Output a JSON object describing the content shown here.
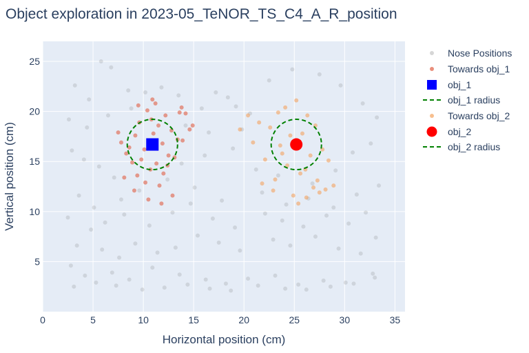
{
  "title": "Object exploration in 2023-05_TeNOR_TS_C4_A_R_position",
  "chart_data": {
    "type": "scatter",
    "title": "Object exploration in 2023-05_TeNOR_TS_C4_A_R_position",
    "xlabel": "Horizontal position (cm)",
    "ylabel": "Vertical position (cm)",
    "xlim": [
      0,
      36
    ],
    "ylim": [
      0,
      27
    ],
    "xticks": [
      0,
      5,
      10,
      15,
      20,
      25,
      30,
      35
    ],
    "yticks": [
      5,
      10,
      15,
      20,
      25
    ],
    "grid": true,
    "legend_position": "right",
    "colors": {
      "background": "#e5ecf6",
      "grid": "#ffffff",
      "nose": "#808080",
      "towards_obj_1": "#e05f45",
      "towards_obj_2": "#f4a460",
      "obj_1": "#0000ff",
      "obj_2": "#ff0000",
      "radius": "#008000"
    },
    "series": [
      {
        "name": "Nose Positions",
        "marker": "circle",
        "color": "#808080",
        "opacity": 0.22,
        "x": [
          5.8,
          6.8,
          3.2,
          4.6,
          8.5,
          10.2,
          11.8,
          13.5,
          15.8,
          17.2,
          18.4,
          19.2,
          20.6,
          2.6,
          4.4,
          6.5,
          8.8,
          14.2,
          16.5,
          19.8,
          22.5,
          24.8,
          27.5,
          29.6,
          31.8,
          33.2,
          2.9,
          4.1,
          5.6,
          7.1,
          13.8,
          16.1,
          18.9,
          21.2,
          23.4,
          26.8,
          29.1,
          30.8,
          32.6,
          3.6,
          5.1,
          7.8,
          9.6,
          12.4,
          15.1,
          17.8,
          21.8,
          24.2,
          26.4,
          28.9,
          31.2,
          33.4,
          2.5,
          4.8,
          6.2,
          8.1,
          10.6,
          12.9,
          14.7,
          16.9,
          19.1,
          22.1,
          23.8,
          25.9,
          28.2,
          30.4,
          32.1,
          33.1,
          3.4,
          5.9,
          7.6,
          9.2,
          11.4,
          13.2,
          15.4,
          17.5,
          19.6,
          22.9,
          24.6,
          27.1,
          29.4,
          31.6,
          2.8,
          4.2,
          6.9,
          8.6,
          10.9,
          13.6,
          16.2,
          18.2,
          20.4,
          23.1,
          25.4,
          27.9,
          30.1,
          32.8,
          3.1,
          5.3,
          7.3,
          9.9,
          12.1,
          14.4,
          16.6,
          18.7,
          21.4,
          24.1,
          26.2,
          28.6,
          30.9,
          33.0
        ],
        "y": [
          25.0,
          24.4,
          22.6,
          21.2,
          22.1,
          21.9,
          22.4,
          21.6,
          20.3,
          21.9,
          21.4,
          20.5,
          19.8,
          19.2,
          18.4,
          19.6,
          20.3,
          18.6,
          17.9,
          18.2,
          23.1,
          24.2,
          23.7,
          22.6,
          20.8,
          19.4,
          16.1,
          15.2,
          14.5,
          13.4,
          14.8,
          15.6,
          16.3,
          14.2,
          13.6,
          12.8,
          14.1,
          15.9,
          16.8,
          11.6,
          10.4,
          11.2,
          12.1,
          13.2,
          12.4,
          11.1,
          11.9,
          10.7,
          11.3,
          10.4,
          11.7,
          12.6,
          9.4,
          8.2,
          8.9,
          9.7,
          8.6,
          9.9,
          10.8,
          9.3,
          8.4,
          9.8,
          9.1,
          8.5,
          9.6,
          8.8,
          9.9,
          7.4,
          6.6,
          6.2,
          5.4,
          6.8,
          5.9,
          6.4,
          7.6,
          6.9,
          6.1,
          7.2,
          6.6,
          7.5,
          6.3,
          5.8,
          4.6,
          3.6,
          3.9,
          3.2,
          4.4,
          3.7,
          3.2,
          2.8,
          3.3,
          3.6,
          2.7,
          3.1,
          2.9,
          3.8,
          2.5,
          2.9,
          2.6,
          2.2,
          2.4,
          2.7,
          2.3,
          2.1,
          2.6,
          2.3,
          2.2,
          2.5,
          2.8,
          3.4
        ]
      },
      {
        "name": "Towards obj_1",
        "marker": "circle",
        "color": "#e05f45",
        "opacity": 0.6,
        "x": [
          10.8,
          10.4,
          11.5,
          9.6,
          12.2,
          11.0,
          9.2,
          12.8,
          10.1,
          11.9,
          8.6,
          13.4,
          9.8,
          12.5,
          11.3,
          10.7,
          8.9,
          13.1,
          9.4,
          12.0,
          11.6,
          10.2,
          14.2,
          13.8,
          14.6,
          7.8,
          8.3,
          9.1,
          10.5,
          11.8,
          12.9,
          13.6,
          9.5,
          10.9,
          11.2,
          12.4,
          8.1,
          7.5,
          13.9,
          14.9
        ],
        "y": [
          19.2,
          20.1,
          18.6,
          18.9,
          19.6,
          17.8,
          17.6,
          18.1,
          16.2,
          16.8,
          16.4,
          17.2,
          15.2,
          15.6,
          14.8,
          14.2,
          14.9,
          15.4,
          13.6,
          13.8,
          12.6,
          12.9,
          19.8,
          20.4,
          18.2,
          16.9,
          15.8,
          12.1,
          11.2,
          10.8,
          11.6,
          19.9,
          20.6,
          21.2,
          20.8,
          14.6,
          13.4,
          17.9,
          17.1,
          18.6
        ]
      },
      {
        "name": "obj_1",
        "marker": "square",
        "color": "#0000ff",
        "opacity": 1,
        "x": [
          10.9
        ],
        "y": [
          16.7
        ]
      },
      {
        "name": "obj_1 radius",
        "marker": "dashed-circle",
        "color": "#008000",
        "opacity": 1,
        "x": [
          10.9
        ],
        "y": [
          16.7
        ],
        "radius": 2.5
      },
      {
        "name": "Towards obj_2",
        "marker": "circle",
        "color": "#f4a460",
        "opacity": 0.6,
        "x": [
          24.1,
          25.2,
          26.3,
          23.4,
          22.6,
          21.5,
          20.4,
          19.6,
          24.6,
          25.8,
          27.1,
          23.8,
          22.1,
          26.6,
          27.8,
          28.4,
          24.3,
          25.6,
          23.1,
          21.8,
          26.9,
          27.5,
          28.1,
          28.9,
          26.2,
          22.9,
          24.9,
          25.4,
          23.6,
          20.9,
          26.1,
          27.3
        ],
        "y": [
          20.4,
          21.1,
          19.6,
          19.9,
          18.4,
          18.9,
          19.6,
          18.2,
          17.6,
          17.8,
          18.6,
          15.8,
          15.2,
          15.6,
          16.2,
          15.1,
          14.6,
          13.8,
          13.2,
          12.8,
          12.4,
          11.9,
          12.2,
          12.6,
          11.4,
          12.1,
          11.6,
          10.8,
          16.6,
          16.9,
          14.2,
          13.1
        ]
      },
      {
        "name": "obj_2",
        "marker": "circle",
        "color": "#ff0000",
        "opacity": 1,
        "x": [
          25.2
        ],
        "y": [
          16.7
        ]
      },
      {
        "name": "obj_2 radius",
        "marker": "dashed-circle",
        "color": "#008000",
        "opacity": 1,
        "x": [
          25.2
        ],
        "y": [
          16.7
        ],
        "radius": 2.5
      }
    ]
  }
}
